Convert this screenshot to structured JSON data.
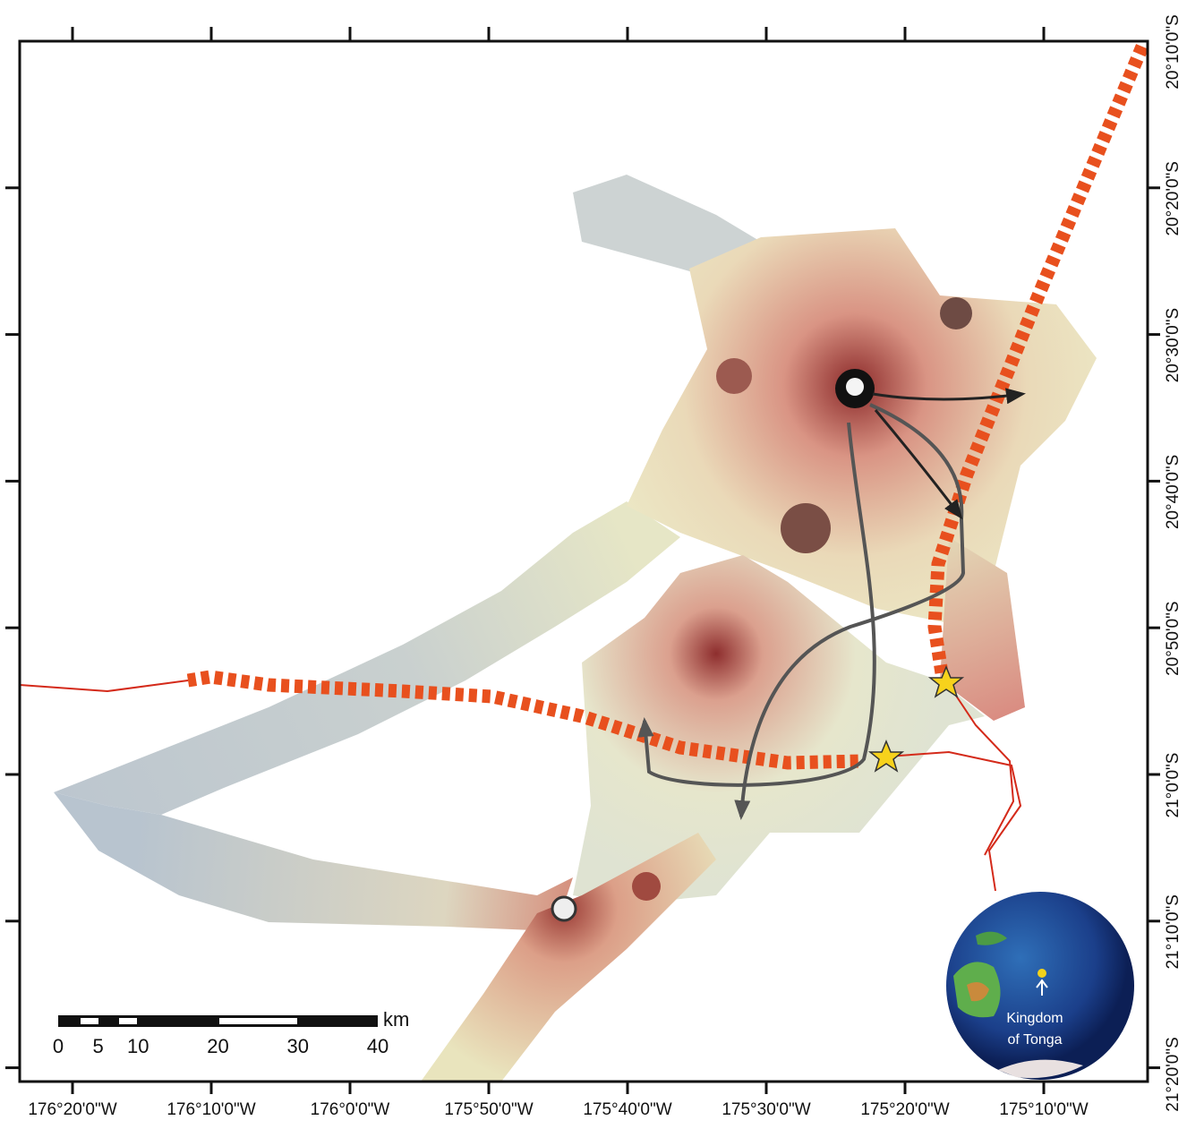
{
  "map": {
    "x_labels": [
      "176°20'0\"W",
      "176°10'0\"W",
      "176°0'0\"W",
      "175°50'0\"W",
      "175°40'0\"W",
      "175°30'0\"W",
      "175°20'0\"W",
      "175°10'0\"W"
    ],
    "y_labels": [
      "20°10'0\"S",
      "20°20'0\"S",
      "20°30'0\"S",
      "20°40'0\"S",
      "20°50'0\"S",
      "21°0'0\"S",
      "21°10'0\"S",
      "21°20'0\"S"
    ],
    "scale_bar": {
      "labels": [
        0,
        5,
        10,
        20,
        30,
        40
      ],
      "unit": "km"
    },
    "inset": {
      "label_lines": [
        "Kingdom",
        "of Tonga"
      ]
    }
  }
}
